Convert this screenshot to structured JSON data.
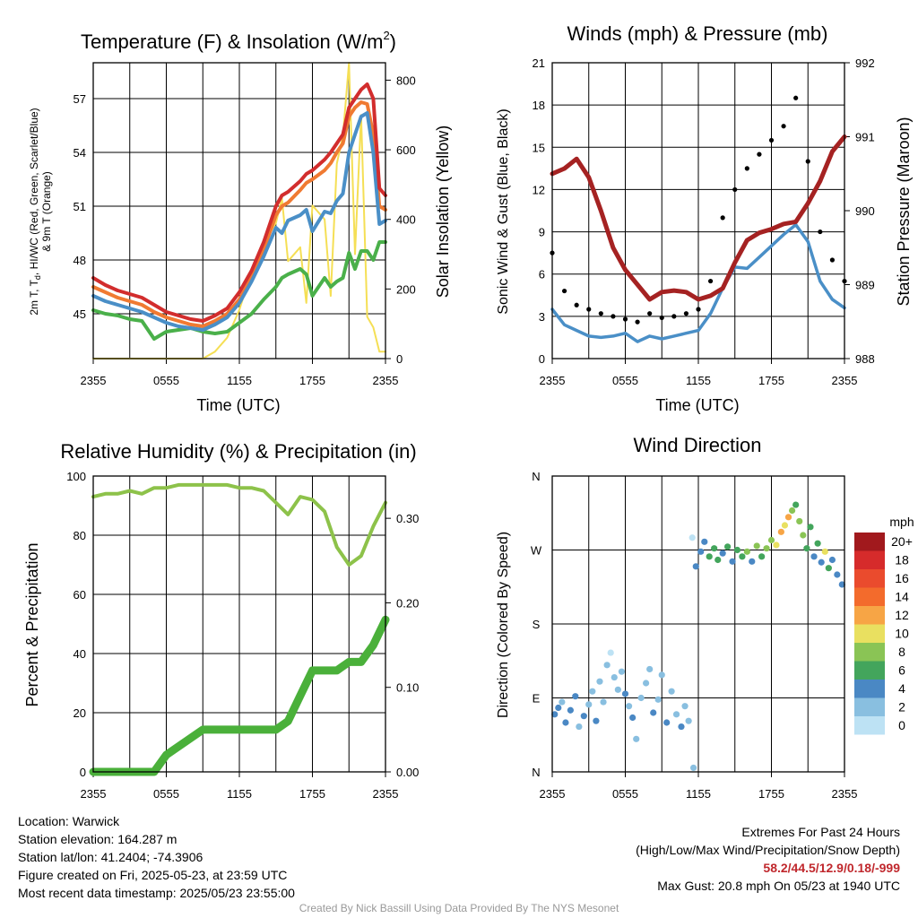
{
  "colors": {
    "red": "#d22d2d",
    "orange": "#f07a32",
    "blue": "#4a8fc7",
    "green": "#4ab04a",
    "yellow": "#f5df55",
    "maroon": "#a52222",
    "black": "#000000",
    "rh_line": "#8dc24a",
    "precip": "#4ab03a",
    "credit": "#999999",
    "extremes": "#c0282d"
  },
  "panels": {
    "temp": {
      "title_main": "Temperature (F) & Insolation (W/m",
      "title_sup": "2",
      "title_end": ")",
      "ylabel_line1": "2m T, T",
      "ylabel_sub": "d",
      "ylabel_line1_end": ", HI/WC (Red, Green, Scarlet/Blue)",
      "ylabel_line2": "& 9m T (Orange)",
      "y2label": "Solar Insolation (Yellow)",
      "xlabel": "Time (UTC)"
    },
    "wind": {
      "title": "Winds (mph) & Pressure (mb)",
      "ylabel": "Sonic Wind & Gust (Blue, Black)",
      "y2label": "Station Pressure (Maroon)",
      "xlabel": "Time (UTC)"
    },
    "rh": {
      "title": "Relative Humidity (%) & Precipitation (in)",
      "ylabel": "Percent & Precipitation"
    },
    "dir": {
      "title": "Wind Direction",
      "ylabel": "Direction (Colored By Speed)",
      "legend_title": "mph"
    }
  },
  "chart_data": [
    {
      "id": "temp",
      "type": "line",
      "title": "Temperature (F) & Insolation (W/m2)",
      "xlabel": "Time (UTC)",
      "ylabel": "2m T, Td, HI/WC (Red, Green, Scarlet/Blue) & 9m T (Orange)",
      "y2label": "Solar Insolation (Yellow)",
      "x_ticks": [
        "2355",
        "0555",
        "1155",
        "1755",
        "2355"
      ],
      "xlim": [
        0,
        24
      ],
      "ylim": [
        42.5,
        59
      ],
      "y_ticks": [
        45,
        48,
        51,
        54,
        57
      ],
      "y2lim": [
        0,
        850
      ],
      "y2_ticks": [
        0,
        200,
        400,
        600,
        800
      ],
      "grid": true,
      "x": [
        0,
        1,
        2,
        3,
        4,
        5,
        6,
        7,
        8,
        9,
        10,
        11,
        12,
        13,
        14,
        15,
        15.5,
        16,
        17,
        17.5,
        18,
        19,
        19.5,
        20,
        20.5,
        21,
        21.5,
        22,
        22.5,
        23,
        23.5,
        24
      ],
      "series": [
        {
          "name": "2m T",
          "color": "red",
          "axis": "left",
          "values": [
            47.0,
            46.6,
            46.3,
            46.1,
            45.9,
            45.5,
            45.1,
            44.9,
            44.7,
            44.6,
            44.9,
            45.3,
            46.2,
            47.4,
            49.0,
            51.0,
            51.6,
            51.8,
            52.4,
            52.8,
            53.0,
            53.6,
            54.0,
            54.5,
            55.0,
            56.5,
            57.0,
            57.5,
            57.8,
            57.0,
            52.0,
            51.6
          ]
        },
        {
          "name": "9m T",
          "color": "orange",
          "axis": "left",
          "values": [
            46.5,
            46.2,
            45.9,
            45.7,
            45.5,
            45.1,
            44.8,
            44.6,
            44.4,
            44.3,
            44.6,
            45.0,
            45.8,
            47.0,
            48.6,
            50.5,
            51.0,
            51.2,
            51.9,
            52.3,
            52.5,
            53.0,
            53.4,
            54.0,
            54.5,
            56.0,
            56.5,
            56.8,
            56.7,
            55.0,
            51.0,
            50.8
          ]
        },
        {
          "name": "HI/WC",
          "color": "blue",
          "axis": "left",
          "values": [
            46.0,
            45.7,
            45.5,
            45.3,
            45.1,
            44.8,
            44.5,
            44.3,
            44.2,
            44.1,
            44.4,
            44.8,
            45.6,
            46.8,
            48.2,
            49.8,
            49.5,
            50.2,
            50.5,
            50.8,
            49.6,
            50.7,
            50.6,
            51.3,
            51.7,
            54.0,
            55.0,
            56.0,
            56.2,
            54.0,
            50.0,
            50.2
          ]
        },
        {
          "name": "2m Td",
          "color": "green",
          "axis": "left",
          "values": [
            45.2,
            45.0,
            44.9,
            44.7,
            44.6,
            43.6,
            44.0,
            44.1,
            44.2,
            44.0,
            43.9,
            44.0,
            44.5,
            45.0,
            45.8,
            46.5,
            47.0,
            47.2,
            47.5,
            47.2,
            46.0,
            47.0,
            46.5,
            46.8,
            47.0,
            48.4,
            47.5,
            48.5,
            48.5,
            48.0,
            49.0,
            49.0
          ]
        },
        {
          "name": "Solar Insolation",
          "color": "yellow",
          "axis": "right",
          "values": [
            0,
            0,
            0,
            0,
            0,
            0,
            0,
            0,
            0,
            0,
            20,
            60,
            140,
            250,
            330,
            390,
            460,
            280,
            320,
            160,
            440,
            400,
            180,
            560,
            640,
            850,
            300,
            700,
            120,
            90,
            20,
            20
          ]
        }
      ]
    },
    {
      "id": "wind",
      "type": "line",
      "title": "Winds (mph) & Pressure (mb)",
      "xlabel": "Time (UTC)",
      "ylabel": "Sonic Wind & Gust (Blue, Black)",
      "y2label": "Station Pressure (Maroon)",
      "x_ticks": [
        "2355",
        "0555",
        "1155",
        "1755",
        "2355"
      ],
      "xlim": [
        0,
        24
      ],
      "ylim": [
        0,
        21
      ],
      "y_ticks": [
        0,
        3,
        6,
        9,
        12,
        15,
        18,
        21
      ],
      "y2lim": [
        988,
        992
      ],
      "y2_ticks": [
        988,
        989,
        990,
        991,
        992
      ],
      "grid": true,
      "x": [
        0,
        1,
        2,
        3,
        4,
        5,
        6,
        7,
        8,
        9,
        10,
        11,
        12,
        13,
        14,
        15,
        16,
        17,
        18,
        19,
        20,
        21,
        22,
        23,
        24
      ],
      "series": [
        {
          "name": "Sonic Wind",
          "color": "blue",
          "axis": "left",
          "values": [
            3.5,
            2.4,
            2.0,
            1.6,
            1.5,
            1.6,
            1.8,
            1.2,
            1.6,
            1.4,
            1.6,
            1.8,
            2.0,
            3.2,
            5.0,
            6.5,
            6.4,
            7.2,
            8.0,
            8.8,
            9.5,
            8.3,
            5.5,
            4.2,
            3.6
          ]
        },
        {
          "name": "Gust",
          "color": "black",
          "axis": "left",
          "marker": "dot",
          "values": [
            7.5,
            4.8,
            3.8,
            3.5,
            3.2,
            3.0,
            2.8,
            2.6,
            3.2,
            2.9,
            3.0,
            3.2,
            3.5,
            5.5,
            10.0,
            12.0,
            13.5,
            14.5,
            15.5,
            16.5,
            18.5,
            14.0,
            9.0,
            7.0,
            5.5
          ]
        },
        {
          "name": "Station Pressure",
          "color": "maroon",
          "axis": "right",
          "values": [
            990.5,
            990.57,
            990.7,
            990.45,
            990.0,
            989.5,
            989.2,
            989.0,
            988.8,
            988.9,
            988.92,
            988.9,
            988.8,
            988.85,
            988.95,
            989.3,
            989.6,
            989.7,
            989.75,
            989.82,
            989.85,
            990.1,
            990.4,
            990.8,
            991.0
          ]
        }
      ]
    },
    {
      "id": "rh",
      "type": "line",
      "title": "Relative Humidity (%) & Precipitation (in)",
      "ylabel": "Percent & Precipitation",
      "x_ticks": [
        "2355",
        "0555",
        "1155",
        "1755",
        "2355"
      ],
      "xlim": [
        0,
        24
      ],
      "ylim": [
        0,
        100
      ],
      "y_ticks": [
        0,
        20,
        40,
        60,
        80,
        100
      ],
      "y2lim": [
        0,
        0.35
      ],
      "y2_ticks": [
        "0.00",
        "0.10",
        "0.20",
        "0.30"
      ],
      "grid": true,
      "x": [
        0,
        1,
        2,
        3,
        4,
        5,
        6,
        7,
        8,
        9,
        10,
        11,
        12,
        13,
        14,
        15,
        16,
        17,
        18,
        19,
        20,
        21,
        22,
        23,
        24
      ],
      "series": [
        {
          "name": "Relative Humidity",
          "color": "rh_line",
          "axis": "left",
          "values": [
            93,
            94,
            94,
            95,
            94,
            96,
            96,
            97,
            97,
            97,
            97,
            97,
            96,
            96,
            95,
            91,
            87,
            93,
            92,
            88,
            76,
            70,
            73,
            83,
            91
          ]
        },
        {
          "name": "Precipitation",
          "color": "precip",
          "axis": "right",
          "values": [
            0.0,
            0.0,
            0.0,
            0.0,
            0.0,
            0.0,
            0.02,
            0.03,
            0.04,
            0.05,
            0.05,
            0.05,
            0.05,
            0.05,
            0.05,
            0.05,
            0.06,
            0.09,
            0.12,
            0.12,
            0.12,
            0.13,
            0.13,
            0.15,
            0.18
          ]
        }
      ]
    },
    {
      "id": "dir",
      "type": "scatter",
      "title": "Wind Direction",
      "ylabel": "Direction (Colored By Speed)",
      "x_ticks": [
        "2355",
        "0555",
        "1155",
        "1755",
        "2355"
      ],
      "xlim": [
        0,
        24
      ],
      "ylim": [
        0,
        360
      ],
      "y_tick_labels": [
        "N",
        "E",
        "S",
        "W",
        "N"
      ],
      "grid": true,
      "legend": {
        "title": "mph",
        "placement": "right",
        "labels": [
          "20+",
          "18",
          "16",
          "14",
          "12",
          "10",
          "8",
          "6",
          "4",
          "2",
          "0"
        ],
        "colors": [
          "#a1191d",
          "#d62b2b",
          "#ea4b2d",
          "#f36b2c",
          "#f7a545",
          "#e9e060",
          "#8ac455",
          "#43a55c",
          "#4a88c4",
          "#89bfe0",
          "#bde2f4"
        ]
      },
      "points": [
        {
          "x": 0.2,
          "dir": 70,
          "speed": 4
        },
        {
          "x": 0.5,
          "dir": 78,
          "speed": 3
        },
        {
          "x": 0.8,
          "dir": 85,
          "speed": 2
        },
        {
          "x": 1.1,
          "dir": 60,
          "speed": 3
        },
        {
          "x": 1.5,
          "dir": 75,
          "speed": 4
        },
        {
          "x": 1.9,
          "dir": 92,
          "speed": 3
        },
        {
          "x": 2.2,
          "dir": 55,
          "speed": 2
        },
        {
          "x": 2.6,
          "dir": 68,
          "speed": 3
        },
        {
          "x": 3.0,
          "dir": 82,
          "speed": 2
        },
        {
          "x": 3.3,
          "dir": 98,
          "speed": 1
        },
        {
          "x": 3.6,
          "dir": 62,
          "speed": 4
        },
        {
          "x": 3.9,
          "dir": 110,
          "speed": 2
        },
        {
          "x": 4.2,
          "dir": 85,
          "speed": 1
        },
        {
          "x": 4.5,
          "dir": 130,
          "speed": 1
        },
        {
          "x": 4.8,
          "dir": 145,
          "speed": 0
        },
        {
          "x": 5.1,
          "dir": 115,
          "speed": 1
        },
        {
          "x": 5.4,
          "dir": 100,
          "speed": 2
        },
        {
          "x": 5.7,
          "dir": 122,
          "speed": 1
        },
        {
          "x": 6.0,
          "dir": 95,
          "speed": 3
        },
        {
          "x": 6.3,
          "dir": 80,
          "speed": 2
        },
        {
          "x": 6.6,
          "dir": 66,
          "speed": 3
        },
        {
          "x": 6.9,
          "dir": 40,
          "speed": 2
        },
        {
          "x": 7.3,
          "dir": 90,
          "speed": 2
        },
        {
          "x": 7.7,
          "dir": 108,
          "speed": 1
        },
        {
          "x": 8.0,
          "dir": 125,
          "speed": 1
        },
        {
          "x": 8.3,
          "dir": 72,
          "speed": 3
        },
        {
          "x": 8.7,
          "dir": 88,
          "speed": 2
        },
        {
          "x": 9.0,
          "dir": 118,
          "speed": 1
        },
        {
          "x": 9.4,
          "dir": 60,
          "speed": 3
        },
        {
          "x": 9.8,
          "dir": 98,
          "speed": 2
        },
        {
          "x": 10.2,
          "dir": 70,
          "speed": 2
        },
        {
          "x": 10.6,
          "dir": 55,
          "speed": 3
        },
        {
          "x": 10.9,
          "dir": 80,
          "speed": 1
        },
        {
          "x": 11.2,
          "dir": 62,
          "speed": 2
        },
        {
          "x": 11.6,
          "dir": 5,
          "speed": 1
        },
        {
          "x": 11.5,
          "dir": 285,
          "speed": 0
        },
        {
          "x": 11.8,
          "dir": 250,
          "speed": 4
        },
        {
          "x": 12.2,
          "dir": 268,
          "speed": 3
        },
        {
          "x": 12.5,
          "dir": 280,
          "speed": 4
        },
        {
          "x": 12.9,
          "dir": 262,
          "speed": 5
        },
        {
          "x": 13.3,
          "dir": 272,
          "speed": 6
        },
        {
          "x": 13.6,
          "dir": 258,
          "speed": 5
        },
        {
          "x": 14.0,
          "dir": 266,
          "speed": 4
        },
        {
          "x": 14.4,
          "dir": 274,
          "speed": 6
        },
        {
          "x": 14.8,
          "dir": 256,
          "speed": 4
        },
        {
          "x": 15.2,
          "dir": 270,
          "speed": 6
        },
        {
          "x": 15.6,
          "dir": 262,
          "speed": 5
        },
        {
          "x": 16.0,
          "dir": 268,
          "speed": 7
        },
        {
          "x": 16.4,
          "dir": 256,
          "speed": 4
        },
        {
          "x": 16.8,
          "dir": 275,
          "speed": 7
        },
        {
          "x": 17.2,
          "dir": 262,
          "speed": 5
        },
        {
          "x": 17.6,
          "dir": 272,
          "speed": 8
        },
        {
          "x": 18.0,
          "dir": 282,
          "speed": 7
        },
        {
          "x": 18.4,
          "dir": 276,
          "speed": 9
        },
        {
          "x": 18.8,
          "dir": 292,
          "speed": 12
        },
        {
          "x": 19.1,
          "dir": 300,
          "speed": 10
        },
        {
          "x": 19.4,
          "dir": 310,
          "speed": 11
        },
        {
          "x": 19.7,
          "dir": 318,
          "speed": 7
        },
        {
          "x": 20.0,
          "dir": 325,
          "speed": 6
        },
        {
          "x": 20.3,
          "dir": 305,
          "speed": 8
        },
        {
          "x": 20.6,
          "dir": 288,
          "speed": 7
        },
        {
          "x": 20.9,
          "dir": 272,
          "speed": 5
        },
        {
          "x": 21.2,
          "dir": 298,
          "speed": 6
        },
        {
          "x": 21.5,
          "dir": 262,
          "speed": 4
        },
        {
          "x": 21.8,
          "dir": 278,
          "speed": 6
        },
        {
          "x": 22.1,
          "dir": 255,
          "speed": 4
        },
        {
          "x": 22.4,
          "dir": 268,
          "speed": 9
        },
        {
          "x": 22.7,
          "dir": 248,
          "speed": 5
        },
        {
          "x": 23.0,
          "dir": 258,
          "speed": 4
        },
        {
          "x": 23.4,
          "dir": 240,
          "speed": 3
        },
        {
          "x": 23.8,
          "dir": 228,
          "speed": 4
        }
      ]
    }
  ],
  "footer": {
    "location": "Location: Warwick",
    "elevation": "Station elevation: 164.287 m",
    "latlon": "Station lat/lon: 41.2404; -74.3906",
    "created": "Figure created on Fri, 2025-05-23, at 23:59 UTC",
    "recent": "Most recent data timestamp: 2025/05/23 23:55:00",
    "extremes_title": "Extremes For Past 24 Hours",
    "extremes_desc": "(High/Low/Max Wind/Precipitation/Snow Depth)",
    "extremes_values": "58.2/44.5/12.9/0.18/-999",
    "max_gust": "Max Gust: 20.8 mph On 05/23 at 1940 UTC",
    "credit": "Created By Nick Bassill Using Data Provided By The NYS Mesonet"
  }
}
